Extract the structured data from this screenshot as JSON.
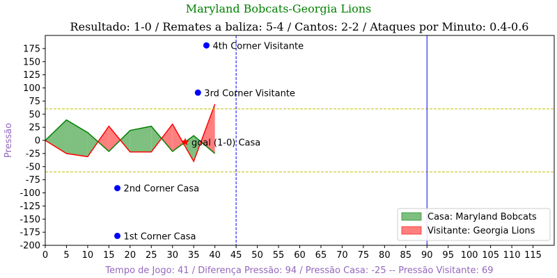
{
  "chart_data": {
    "type": "area",
    "title": "Maryland Bobcats-Georgia Lions",
    "subtitle": "Resultado: 1-0 / Remates a baliza: 5-4 / Cantos: 2-2 / Ataques por Minuto: 0.4-0.6",
    "xlabel": "Tempo de Jogo: 41 / Diferença Pressão: 94 / Pressão Casa: -25 -- Pressão Visitante: 69",
    "ylabel": "Pressão",
    "xlim": [
      0,
      120
    ],
    "ylim": [
      -200,
      200
    ],
    "x_ticks": [
      0,
      5,
      10,
      15,
      20,
      25,
      30,
      35,
      40,
      45,
      50,
      55,
      60,
      65,
      70,
      75,
      80,
      85,
      90,
      95,
      100,
      105,
      110,
      115
    ],
    "y_ticks": [
      -200,
      -175,
      -150,
      -125,
      -100,
      -75,
      -50,
      -25,
      0,
      25,
      50,
      75,
      100,
      125,
      150,
      175
    ],
    "colors": {
      "home": "#008000",
      "away": "#ff0000",
      "home_fill": "#7fbf7f",
      "away_fill": "#ff7f7f",
      "threshold": "#bfbf00",
      "marker": "#0000ff",
      "title": "#008000",
      "axis_label": "#9467bd"
    },
    "series": [
      {
        "name": "Casa: Maryland Bobcats",
        "x": [
          0,
          5,
          10,
          15,
          20,
          25,
          30,
          35,
          40
        ],
        "values": [
          0,
          39,
          15,
          -21,
          19,
          27,
          -21,
          9,
          -25
        ]
      },
      {
        "name": "Visitante: Georgia Lions",
        "x": [
          0,
          5,
          10,
          15,
          20,
          25,
          30,
          35,
          40
        ],
        "values": [
          0,
          -25,
          -31,
          27,
          -22,
          -22,
          31,
          -40,
          69
        ]
      }
    ],
    "threshold_lines": [
      60,
      -60
    ],
    "vertical_lines": [
      {
        "x": 45,
        "style": "dashed"
      },
      {
        "x": 90,
        "style": "solid"
      }
    ],
    "annotations": [
      {
        "x": 38,
        "y": 181,
        "label": "4th Corner Visitante",
        "marker": "dot"
      },
      {
        "x": 36,
        "y": 91,
        "label": "3rd Corner Visitante",
        "marker": "dot"
      },
      {
        "x": 33,
        "y": -3,
        "label": "goal (1-0) Casa",
        "marker": "star"
      },
      {
        "x": 17,
        "y": -91,
        "label": "2nd Corner Casa",
        "marker": "dot"
      },
      {
        "x": 17,
        "y": -182,
        "label": "1st Corner Casa",
        "marker": "dot"
      }
    ],
    "legend": {
      "position": "bottom-right",
      "items": [
        "Casa: Maryland Bobcats",
        "Visitante: Georgia Lions"
      ]
    }
  }
}
